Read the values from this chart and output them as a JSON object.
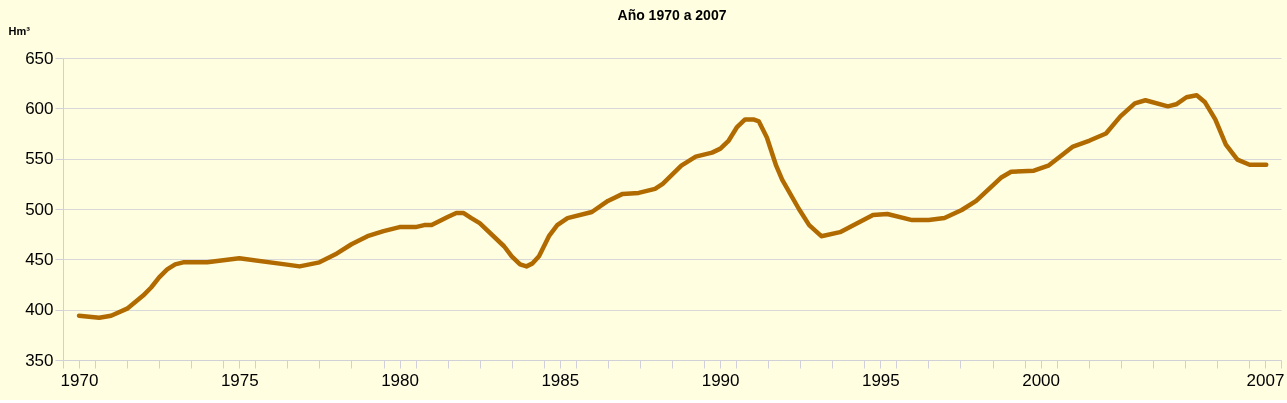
{
  "chart_data": {
    "type": "line",
    "title": "Año 1970 a 2007",
    "ylabel": "Hm³",
    "series": [
      {
        "color": "#b06a00",
        "x": [
          1970.0,
          1970.63,
          1971.0,
          1971.5,
          1972.0,
          1972.25,
          1972.5,
          1972.75,
          1973.0,
          1973.25,
          1974.0,
          1975.0,
          1976.43,
          1976.88,
          1977.5,
          1978.0,
          1978.5,
          1979.0,
          1979.5,
          1980.0,
          1980.5,
          1980.77,
          1981.0,
          1981.5,
          1981.77,
          1982.0,
          1982.24,
          1982.5,
          1983.26,
          1983.5,
          1983.76,
          1983.96,
          1984.15,
          1984.35,
          1984.66,
          1984.92,
          1985.24,
          1986.0,
          1986.5,
          1986.96,
          1987.46,
          1987.97,
          1988.21,
          1988.79,
          1989.24,
          1989.75,
          1990.01,
          1990.27,
          1990.52,
          1990.78,
          1991.04,
          1991.21,
          1991.46,
          1991.75,
          1991.94,
          1992.46,
          1992.78,
          1993.16,
          1993.74,
          1994.77,
          1995.22,
          1995.99,
          1996.51,
          1997.0,
          1997.54,
          1997.99,
          1998.76,
          1999.08,
          1999.79,
          2000.24,
          2001.01,
          2001.53,
          2002.04,
          2002.49,
          2002.94,
          2003.27,
          2003.97,
          2004.23,
          2004.55,
          2004.87,
          2005.13,
          2005.45,
          2005.78,
          2006.14,
          2006.52,
          2007.04
        ],
        "values": [
          394,
          392,
          394,
          401,
          414,
          422,
          432,
          440,
          445,
          447,
          447,
          451,
          445,
          443,
          447,
          455,
          465,
          473,
          478,
          482,
          482,
          484,
          484,
          492,
          496,
          496,
          491,
          486,
          463,
          453,
          445,
          443,
          446,
          453,
          473,
          484,
          491,
          497,
          508,
          515,
          516,
          520,
          525,
          543,
          552,
          556,
          560,
          568,
          581,
          589,
          589,
          587,
          571,
          543,
          529,
          500,
          484,
          473,
          477,
          494,
          495,
          489,
          489,
          491,
          499,
          508,
          531,
          537,
          538,
          543,
          562,
          568,
          575,
          592,
          605,
          608,
          602,
          604,
          611,
          613,
          606,
          589,
          564,
          549,
          544,
          544
        ]
      }
    ],
    "xlim": [
      1969.5,
      2007.5
    ],
    "xticks": [
      1970,
      1975,
      1980,
      1985,
      1990,
      1995,
      2000,
      2007,
      {
        "value": 1969.5,
        "label": null
      },
      {
        "value": 1970.5,
        "label": null
      },
      {
        "value": 1971.5,
        "label": null
      },
      {
        "value": 1972.5,
        "label": null
      },
      {
        "value": 1973.5,
        "label": null
      },
      {
        "value": 1974.5,
        "label": null
      },
      {
        "value": 1975.5,
        "label": null
      },
      {
        "value": 1976.5,
        "label": null
      },
      {
        "value": 1977.5,
        "label": null
      },
      {
        "value": 1978.5,
        "label": null
      },
      {
        "value": 1979.5,
        "label": null
      },
      {
        "value": 1980.5,
        "label": null
      },
      {
        "value": 1981.5,
        "label": null
      },
      {
        "value": 1982.5,
        "label": null
      },
      {
        "value": 1983.5,
        "label": null
      },
      {
        "value": 1984.5,
        "label": null
      },
      {
        "value": 1985.5,
        "label": null
      },
      {
        "value": 1986.5,
        "label": null
      },
      {
        "value": 1987.5,
        "label": null
      },
      {
        "value": 1988.5,
        "label": null
      },
      {
        "value": 1989.5,
        "label": null
      },
      {
        "value": 1990.5,
        "label": null
      },
      {
        "value": 1991.5,
        "label": null
      },
      {
        "value": 1992.5,
        "label": null
      },
      {
        "value": 1993.5,
        "label": null
      },
      {
        "value": 1994.5,
        "label": null
      },
      {
        "value": 1995.5,
        "label": null
      },
      {
        "value": 1996.5,
        "label": null
      },
      {
        "value": 1997.5,
        "label": null
      },
      {
        "value": 1998.5,
        "label": null
      },
      {
        "value": 1999.5,
        "label": null
      },
      {
        "value": 2000.5,
        "label": null
      },
      {
        "value": 2001.5,
        "label": null
      },
      {
        "value": 2002.5,
        "label": null
      },
      {
        "value": 2003.5,
        "label": null
      },
      {
        "value": 2004.5,
        "label": null
      },
      {
        "value": 2005.5,
        "label": null
      },
      {
        "value": 2006.5,
        "label": null
      },
      {
        "value": 2007.5,
        "label": null
      }
    ],
    "ylim": [
      350,
      650
    ],
    "yticks": [
      350,
      400,
      450,
      500,
      550,
      600,
      650
    ],
    "grid": "y",
    "legend": false,
    "marker": "none",
    "line_style": "solid"
  }
}
